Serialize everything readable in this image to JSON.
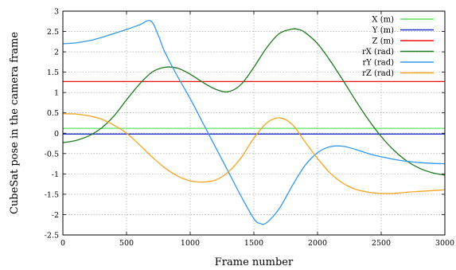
{
  "chart_data": {
    "type": "line",
    "xlabel": "Frame number",
    "ylabel": "CubeSat pose in the camera frame",
    "xlim": [
      0,
      3000
    ],
    "ylim": [
      -2.5,
      3
    ],
    "xticks": [
      0,
      500,
      1000,
      1500,
      2000,
      2500,
      3000
    ],
    "yticks": [
      -2.5,
      -2,
      -1.5,
      -1,
      -0.5,
      0,
      0.5,
      1,
      1.5,
      2,
      2.5,
      3
    ],
    "grid": true,
    "legend_position": "top-right",
    "series": [
      {
        "name": "X (m)",
        "color": "#5ee05e",
        "x": [
          0,
          3000
        ],
        "y": [
          0.12,
          0.12
        ]
      },
      {
        "name": "Y (m)",
        "color": "#2233cc",
        "x": [
          0,
          3000
        ],
        "y": [
          -0.02,
          -0.02
        ]
      },
      {
        "name": "Z (m)",
        "color": "#ee1111",
        "x": [
          0,
          3000
        ],
        "y": [
          1.27,
          1.27
        ]
      },
      {
        "name": "rX (rad)",
        "color": "#1d7a1d",
        "x": [
          0,
          100,
          200,
          300,
          400,
          500,
          600,
          700,
          800,
          900,
          1000,
          1100,
          1200,
          1300,
          1400,
          1500,
          1600,
          1700,
          1800,
          1850,
          1900,
          2000,
          2100,
          2200,
          2300,
          2400,
          2500,
          2600,
          2700,
          2800,
          2900,
          3000
        ],
        "y": [
          -0.23,
          -0.18,
          -0.07,
          0.12,
          0.42,
          0.82,
          1.2,
          1.5,
          1.62,
          1.6,
          1.45,
          1.25,
          1.08,
          1.02,
          1.2,
          1.62,
          2.1,
          2.45,
          2.56,
          2.55,
          2.48,
          2.2,
          1.78,
          1.3,
          0.8,
          0.33,
          -0.08,
          -0.42,
          -0.68,
          -0.86,
          -0.97,
          -1.03
        ]
      },
      {
        "name": "rY (rad)",
        "color": "#3399e8",
        "x": [
          0,
          100,
          200,
          300,
          400,
          500,
          600,
          690,
          750,
          800,
          900,
          1000,
          1100,
          1200,
          1300,
          1400,
          1500,
          1550,
          1600,
          1700,
          1800,
          1900,
          2000,
          2100,
          2200,
          2300,
          2400,
          2500,
          2600,
          2700,
          2800,
          2900,
          3000
        ],
        "y": [
          2.2,
          2.22,
          2.27,
          2.35,
          2.45,
          2.55,
          2.66,
          2.76,
          2.4,
          2.0,
          1.4,
          0.85,
          0.25,
          -0.35,
          -0.95,
          -1.55,
          -2.1,
          -2.22,
          -2.2,
          -1.85,
          -1.3,
          -0.8,
          -0.48,
          -0.33,
          -0.32,
          -0.4,
          -0.5,
          -0.58,
          -0.64,
          -0.69,
          -0.72,
          -0.74,
          -0.75
        ]
      },
      {
        "name": "rZ (rad)",
        "color": "#f5a623",
        "x": [
          0,
          100,
          200,
          300,
          400,
          500,
          600,
          700,
          800,
          900,
          1000,
          1100,
          1200,
          1300,
          1400,
          1500,
          1600,
          1700,
          1800,
          1900,
          2000,
          2100,
          2200,
          2300,
          2400,
          2500,
          2600,
          2700,
          2800,
          2900,
          3000
        ],
        "y": [
          0.48,
          0.47,
          0.43,
          0.35,
          0.2,
          0.0,
          -0.28,
          -0.58,
          -0.85,
          -1.05,
          -1.17,
          -1.2,
          -1.15,
          -0.95,
          -0.6,
          -0.12,
          0.25,
          0.38,
          0.22,
          -0.2,
          -0.62,
          -0.98,
          -1.23,
          -1.38,
          -1.45,
          -1.48,
          -1.48,
          -1.45,
          -1.43,
          -1.41,
          -1.39
        ]
      }
    ]
  }
}
